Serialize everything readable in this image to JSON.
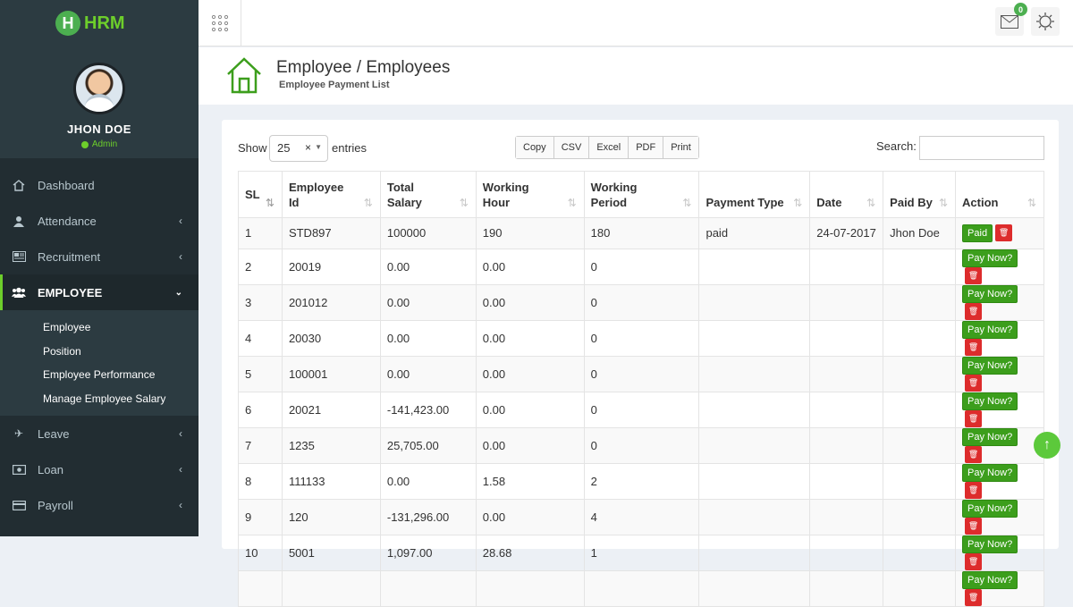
{
  "app": {
    "logo_letter": "H",
    "logo_text": "HRM"
  },
  "user": {
    "name": "JHON DOE",
    "role": "Admin"
  },
  "menu": [
    {
      "label": "Dashboard",
      "icon": "home-icon"
    },
    {
      "label": "Attendance",
      "icon": "user-icon"
    },
    {
      "label": "Recruitment",
      "icon": "newspaper-icon"
    },
    {
      "label": "EMPLOYEE",
      "icon": "users-icon",
      "active": true
    },
    {
      "label": "Leave",
      "icon": "plane-icon"
    },
    {
      "label": "Loan",
      "icon": "money-icon"
    },
    {
      "label": "Payroll",
      "icon": "card-icon"
    }
  ],
  "submenu": [
    "Employee",
    "Position",
    "Employee Performance",
    "Manage Employee Salary"
  ],
  "topbar": {
    "notification_count": "0"
  },
  "header": {
    "title": "Employee / Employees",
    "subtitle": "Employee Payment List"
  },
  "table_controls": {
    "show_label": "Show",
    "entries_value": "25",
    "entries_label": "entries",
    "export_buttons": [
      "Copy",
      "CSV",
      "Excel",
      "PDF",
      "Print"
    ],
    "search_label": "Search:"
  },
  "table": {
    "headers": [
      "SL",
      "Employee Id",
      "Total Salary",
      "Working Hour",
      "Working Period",
      "Payment Type",
      "Date",
      "Paid By",
      "Action"
    ],
    "rows": [
      {
        "sl": "1",
        "id": "STD897",
        "salary": "100000",
        "hour": "190",
        "period": "180",
        "ptype": "paid",
        "date": "24-07-2017",
        "paidby": "Jhon Doe",
        "action": "Paid"
      },
      {
        "sl": "2",
        "id": "20019",
        "salary": "0.00",
        "hour": "0.00",
        "period": "0",
        "ptype": "",
        "date": "",
        "paidby": "",
        "action": "Pay Now?"
      },
      {
        "sl": "3",
        "id": "201012",
        "salary": "0.00",
        "hour": "0.00",
        "period": "0",
        "ptype": "",
        "date": "",
        "paidby": "",
        "action": "Pay Now?"
      },
      {
        "sl": "4",
        "id": "20030",
        "salary": "0.00",
        "hour": "0.00",
        "period": "0",
        "ptype": "",
        "date": "",
        "paidby": "",
        "action": "Pay Now?"
      },
      {
        "sl": "5",
        "id": "100001",
        "salary": "0.00",
        "hour": "0.00",
        "period": "0",
        "ptype": "",
        "date": "",
        "paidby": "",
        "action": "Pay Now?"
      },
      {
        "sl": "6",
        "id": "20021",
        "salary": "-141,423.00",
        "hour": "0.00",
        "period": "0",
        "ptype": "",
        "date": "",
        "paidby": "",
        "action": "Pay Now?"
      },
      {
        "sl": "7",
        "id": "1235",
        "salary": "25,705.00",
        "hour": "0.00",
        "period": "0",
        "ptype": "",
        "date": "",
        "paidby": "",
        "action": "Pay Now?"
      },
      {
        "sl": "8",
        "id": "111133",
        "salary": "0.00",
        "hour": "1.58",
        "period": "2",
        "ptype": "",
        "date": "",
        "paidby": "",
        "action": "Pay Now?"
      },
      {
        "sl": "9",
        "id": "120",
        "salary": "-131,296.00",
        "hour": "0.00",
        "period": "4",
        "ptype": "",
        "date": "",
        "paidby": "",
        "action": "Pay Now?"
      },
      {
        "sl": "10",
        "id": "5001",
        "salary": "1,097.00",
        "hour": "28.68",
        "period": "1",
        "ptype": "",
        "date": "",
        "paidby": "",
        "action": "Pay Now?"
      },
      {
        "sl": "",
        "id": "",
        "salary": "",
        "hour": "",
        "period": "",
        "ptype": "",
        "date": "",
        "paidby": "",
        "action": "Pay Now?"
      }
    ]
  },
  "colors": {
    "accent": "#6dce2b",
    "button_green": "#3c9e1c",
    "danger": "#dd2c2c",
    "sidebar": "#222d32"
  }
}
